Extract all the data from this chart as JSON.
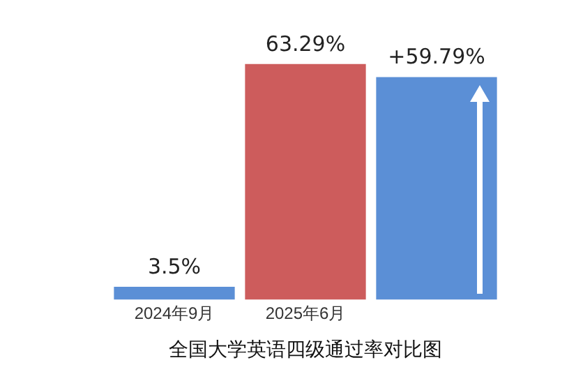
{
  "chart_data": {
    "type": "bar",
    "title": "全国大学英语四级通过率对比图",
    "categories": [
      "2024年9月",
      "2025年6月",
      null
    ],
    "values": [
      3.5,
      63.29,
      59.79
    ],
    "colors": [
      "#5b8fd6",
      "#cd5c5c",
      "#5b8fd6"
    ],
    "value_labels": [
      "3.5%",
      "63.29%",
      "+59.79%"
    ],
    "grid": false,
    "legend": false
  }
}
